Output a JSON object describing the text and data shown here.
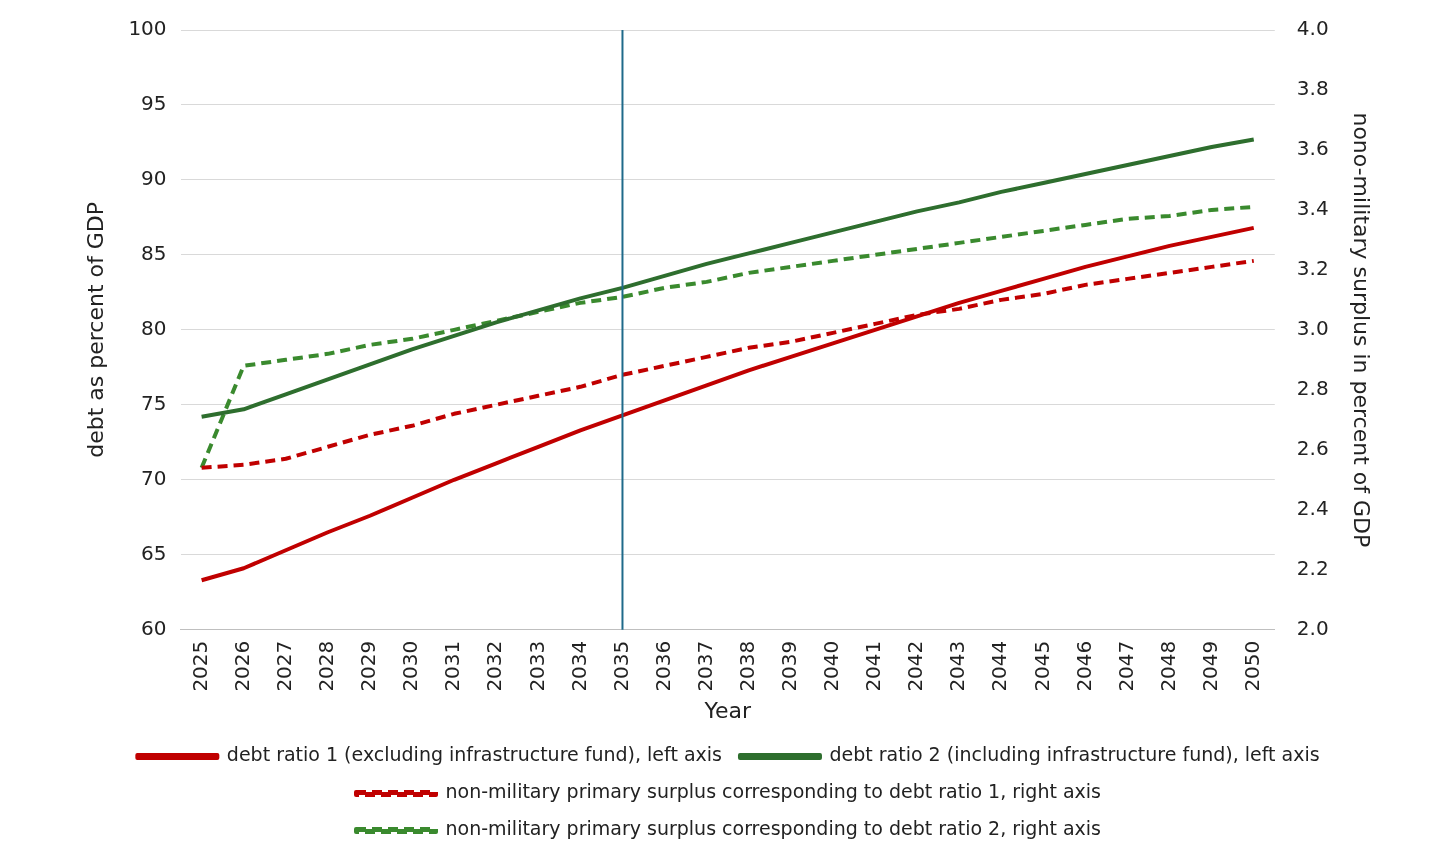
{
  "chart_data": {
    "type": "line",
    "xlabel": "Year",
    "ylabel": "debt as percent of GDP",
    "y2label": "nono-military surplus in percent of GDP",
    "x": [
      2025,
      2026,
      2027,
      2028,
      2029,
      2030,
      2031,
      2032,
      2033,
      2034,
      2035,
      2036,
      2037,
      2038,
      2039,
      2040,
      2041,
      2042,
      2043,
      2044,
      2045,
      2046,
      2047,
      2048,
      2049,
      2050
    ],
    "xlim": [
      2024.5,
      2050.5
    ],
    "xticks": [
      2025,
      2026,
      2027,
      2028,
      2029,
      2030,
      2031,
      2032,
      2033,
      2034,
      2035,
      2036,
      2037,
      2038,
      2039,
      2040,
      2041,
      2042,
      2043,
      2044,
      2045,
      2046,
      2047,
      2048,
      2049,
      2050
    ],
    "ylim": [
      60,
      100
    ],
    "yticks": [
      60,
      65,
      70,
      75,
      80,
      85,
      90,
      95,
      100
    ],
    "y2lim": [
      2.0,
      4.0
    ],
    "y2ticks": [
      {
        "value": 2.0,
        "label": "2.0"
      },
      {
        "value": 2.2,
        "label": "2.2"
      },
      {
        "value": 2.4,
        "label": "2.4"
      },
      {
        "value": 2.6,
        "label": "2.6"
      },
      {
        "value": 2.8,
        "label": "2.8"
      },
      {
        "value": 3.0,
        "label": "3.0"
      },
      {
        "value": 3.2,
        "label": "3.2"
      },
      {
        "value": 3.4,
        "label": "3.4"
      },
      {
        "value": 3.6,
        "label": "3.6"
      },
      {
        "value": 3.8,
        "label": "3.8"
      },
      {
        "value": 4.0,
        "label": "4.0"
      }
    ],
    "grid": "y",
    "legend": "bottom",
    "marker": "none",
    "series": [
      {
        "name": "debt ratio 1 (excluding infrastructure fund), left axis",
        "color": "#c00000",
        "line_style": "solid",
        "values": [
          63.3,
          64.1,
          65.3,
          66.5,
          67.6,
          68.8,
          70.0,
          71.1,
          72.2,
          73.3,
          74.3,
          75.3,
          76.3,
          77.3,
          78.2,
          79.1,
          80.0,
          80.9,
          81.8,
          82.6,
          83.4,
          84.2,
          84.9,
          85.6,
          86.2,
          86.8
        ]
      },
      {
        "name": "debt ratio 2 (including infrastructure fund), left axis",
        "color": "#2e6e2e",
        "line_style": "solid",
        "values": [
          74.2,
          74.7,
          75.7,
          76.7,
          77.7,
          78.7,
          79.6,
          80.5,
          81.3,
          82.1,
          82.8,
          83.6,
          84.4,
          85.1,
          85.8,
          86.5,
          87.2,
          87.9,
          88.5,
          89.2,
          89.8,
          90.4,
          91.0,
          91.6,
          92.2,
          92.7
        ]
      },
      {
        "name": "non-military primary surplus corresponding to debt ratio 1, right axis",
        "color": "#c00000",
        "line_style": "dashed",
        "axis": "y2",
        "values": [
          2.54,
          2.55,
          2.57,
          2.61,
          2.65,
          2.68,
          2.72,
          2.75,
          2.78,
          2.81,
          2.85,
          2.88,
          2.91,
          2.94,
          2.96,
          2.99,
          3.02,
          3.05,
          3.07,
          3.1,
          3.12,
          3.15,
          3.17,
          3.19,
          3.21,
          3.23
        ]
      },
      {
        "name": "non-military primary surplus corresponding to debt ratio 2, right axis",
        "color": "#3a8a2e",
        "line_style": "dashed",
        "axis": "y2",
        "values": [
          2.54,
          2.88,
          2.9,
          2.92,
          2.95,
          2.97,
          3.0,
          3.03,
          3.06,
          3.09,
          3.11,
          3.14,
          3.16,
          3.19,
          3.21,
          3.23,
          3.25,
          3.27,
          3.29,
          3.31,
          3.33,
          3.35,
          3.37,
          3.38,
          3.4,
          3.41
        ]
      }
    ],
    "ref_lines": [
      {
        "axis": "x",
        "value": 2035,
        "color": "#1f6a8a"
      }
    ]
  }
}
